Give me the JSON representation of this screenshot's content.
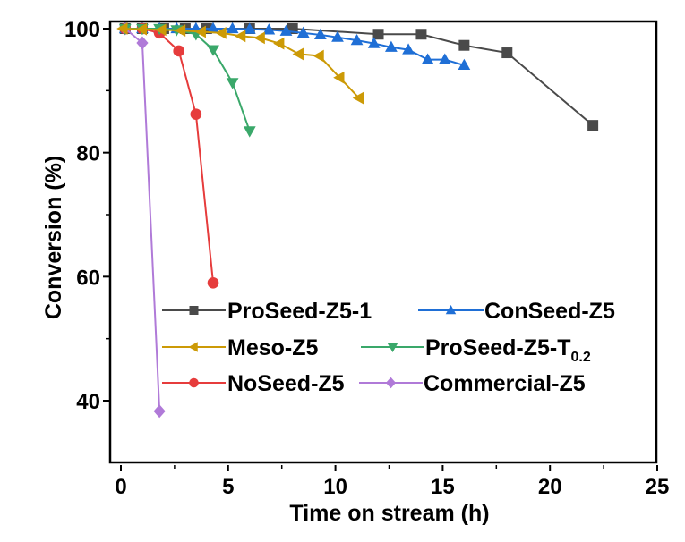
{
  "chart_data": {
    "type": "line",
    "title": "",
    "xlabel": "Time on stream (h)",
    "ylabel": "Conversion (%)",
    "xlim": [
      -0.5,
      25
    ],
    "ylim": [
      30,
      100
    ],
    "x_ticks": [
      0,
      5,
      10,
      15,
      20,
      25
    ],
    "x_tick_labels": [
      "0",
      "5",
      "10",
      "15",
      "20",
      "25"
    ],
    "x_minor_ticks": [
      2.5,
      7.5,
      12.5,
      17.5,
      22.5
    ],
    "y_ticks": [
      40,
      60,
      80,
      100
    ],
    "y_tick_labels": [
      "40",
      "60",
      "80",
      "100"
    ],
    "y_minor_ticks": [
      50,
      70,
      90
    ],
    "grid": false,
    "legend_position": "lower-center",
    "series": [
      {
        "name": "ProSeed-Z5-1",
        "legend_label": "ProSeed-Z5-1",
        "color": "#4a4a4a",
        "marker": "square",
        "x": [
          0.2,
          1.0,
          2.0,
          3.0,
          4.0,
          6.0,
          8.0,
          12.0,
          14.0,
          16.0,
          18.0,
          22.0
        ],
        "y": [
          100,
          100,
          100,
          100,
          100,
          100,
          100,
          99.1,
          99.1,
          97.3,
          96.1,
          84.4
        ]
      },
      {
        "name": "ConSeed-Z5",
        "legend_label": "ConSeed-Z5",
        "color": "#1f6fd6",
        "marker": "triangle-up",
        "x": [
          0.2,
          1.0,
          1.8,
          2.6,
          3.5,
          4.3,
          5.2,
          6.0,
          6.9,
          7.7,
          8.5,
          9.3,
          10.1,
          11.0,
          11.8,
          12.6,
          13.4,
          14.3,
          15.1,
          16.0
        ],
        "y": [
          100,
          100,
          100,
          100,
          100,
          100,
          100,
          99.9,
          99.8,
          99.6,
          99.3,
          99.0,
          98.6,
          98.1,
          97.6,
          97.0,
          96.6,
          95.0,
          95.0,
          94.1
        ]
      },
      {
        "name": "Meso-Z5",
        "legend_label": "Meso-Z5",
        "color": "#cc9a06",
        "marker": "triangle-left",
        "x": [
          0.1,
          1.0,
          1.9,
          2.8,
          3.75,
          4.7,
          5.6,
          6.5,
          7.4,
          8.3,
          9.25,
          10.2,
          11.1
        ],
        "y": [
          100,
          99.9,
          99.8,
          99.7,
          99.5,
          99.3,
          98.8,
          98.5,
          97.6,
          95.9,
          95.6,
          92.1,
          88.8
        ]
      },
      {
        "name": "ProSeed-Z5-T0.2",
        "legend_label": "ProSeed-Z5-T",
        "legend_subscript": "0.2",
        "color": "#3aa86a",
        "marker": "triangle-down",
        "x": [
          0.2,
          1.0,
          1.8,
          2.6,
          3.5,
          4.3,
          5.2,
          6.0
        ],
        "y": [
          100,
          100,
          100,
          99.8,
          99.1,
          96.6,
          91.3,
          83.5
        ]
      },
      {
        "name": "NoSeed-Z5",
        "legend_label": "NoSeed-Z5",
        "color": "#e63c3c",
        "marker": "circle",
        "x": [
          0.2,
          1.0,
          1.8,
          2.7,
          3.5,
          4.3
        ],
        "y": [
          100,
          100,
          99.3,
          96.4,
          86.2,
          59.0
        ]
      },
      {
        "name": "Commercial-Z5",
        "legend_label": "Commercial-Z5",
        "color": "#b07ad8",
        "marker": "diamond",
        "x": [
          0.2,
          1.0,
          1.8
        ],
        "y": [
          100,
          97.7,
          38.3
        ]
      }
    ]
  }
}
